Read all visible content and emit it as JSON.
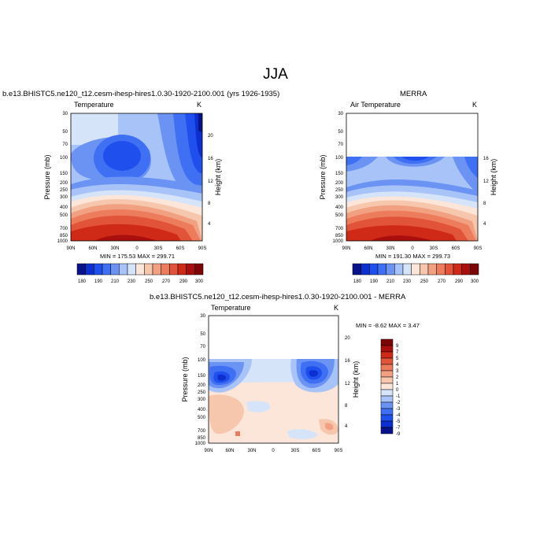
{
  "main_title": "JJA",
  "colors": {
    "levels": [
      "#08138a",
      "#0b2fd0",
      "#1f50ee",
      "#3f6ff2",
      "#6b93f4",
      "#a8c3f7",
      "#d6e4fa",
      "#fbe6d9",
      "#f6c7ad",
      "#f1a182",
      "#ec7c5c",
      "#e2543a",
      "#cf2a18",
      "#a90f0c",
      "#7c0606"
    ]
  },
  "chart_data": [
    {
      "type": "heatmap",
      "subtitle": "b.e13.BHISTC5.ne120_t12.cesm-ihesp-hires1.0.30-1920-2100.001 (yrs 1926-1935)",
      "left_label": "Temperature",
      "right_label": "K",
      "ylabel": "Pressure (mb)",
      "y2label": "Height (km)",
      "x_ticks": [
        "90N",
        "60N",
        "30N",
        "0",
        "30S",
        "60S",
        "90S"
      ],
      "p_ticks": [
        "30",
        "50",
        "70",
        "100",
        "150",
        "200",
        "250",
        "300",
        "400",
        "500",
        "700",
        "850",
        "1000"
      ],
      "h_ticks": [
        "20",
        "16",
        "12",
        "8",
        "4"
      ],
      "min": 175.53,
      "max": 299.71,
      "minmax_text": "MIN = 175.53   MAX = 299.71",
      "colorbar_labels": [
        "180",
        "190",
        "210",
        "230",
        "250",
        "270",
        "290",
        "300"
      ]
    },
    {
      "type": "heatmap",
      "subtitle": "MERRA",
      "left_label": "Air Temperature",
      "right_label": "K",
      "ylabel": "Pressure (mb)",
      "y2label": "Height (km)",
      "x_ticks": [
        "90N",
        "60N",
        "30N",
        "0",
        "30S",
        "60S",
        "90S"
      ],
      "p_ticks": [
        "30",
        "50",
        "70",
        "100",
        "150",
        "200",
        "250",
        "300",
        "400",
        "500",
        "700",
        "850",
        "1000"
      ],
      "h_ticks": [
        "16",
        "12",
        "8",
        "4"
      ],
      "min": 191.3,
      "max": 299.73,
      "minmax_text": "MIN = 191.30   MAX = 299.73",
      "colorbar_labels": [
        "180",
        "190",
        "210",
        "230",
        "250",
        "270",
        "290",
        "300"
      ]
    },
    {
      "type": "heatmap",
      "subtitle": "b.e13.BHISTC5.ne120_t12.cesm-ihesp-hires1.0.30-1920-2100.001 - MERRA",
      "left_label": "Temperature",
      "right_label": "K",
      "ylabel": "Pressure (mb)",
      "y2label": "Height (km)",
      "x_ticks": [
        "90N",
        "60N",
        "30N",
        "0",
        "30S",
        "60S",
        "90S"
      ],
      "p_ticks": [
        "30",
        "50",
        "70",
        "100",
        "150",
        "200",
        "250",
        "300",
        "400",
        "500",
        "700",
        "850",
        "1000"
      ],
      "h_ticks": [
        "20",
        "16",
        "12",
        "8",
        "4"
      ],
      "min": -8.62,
      "max": 3.47,
      "minmax_text": "MIN =  -8.62  MAX =   3.47",
      "colorbar_labels": [
        "9",
        "7",
        "5",
        "4",
        "3",
        "2",
        "1",
        "0",
        "-1",
        "-2",
        "-3",
        "-4",
        "-5",
        "-7",
        "-9"
      ]
    }
  ]
}
